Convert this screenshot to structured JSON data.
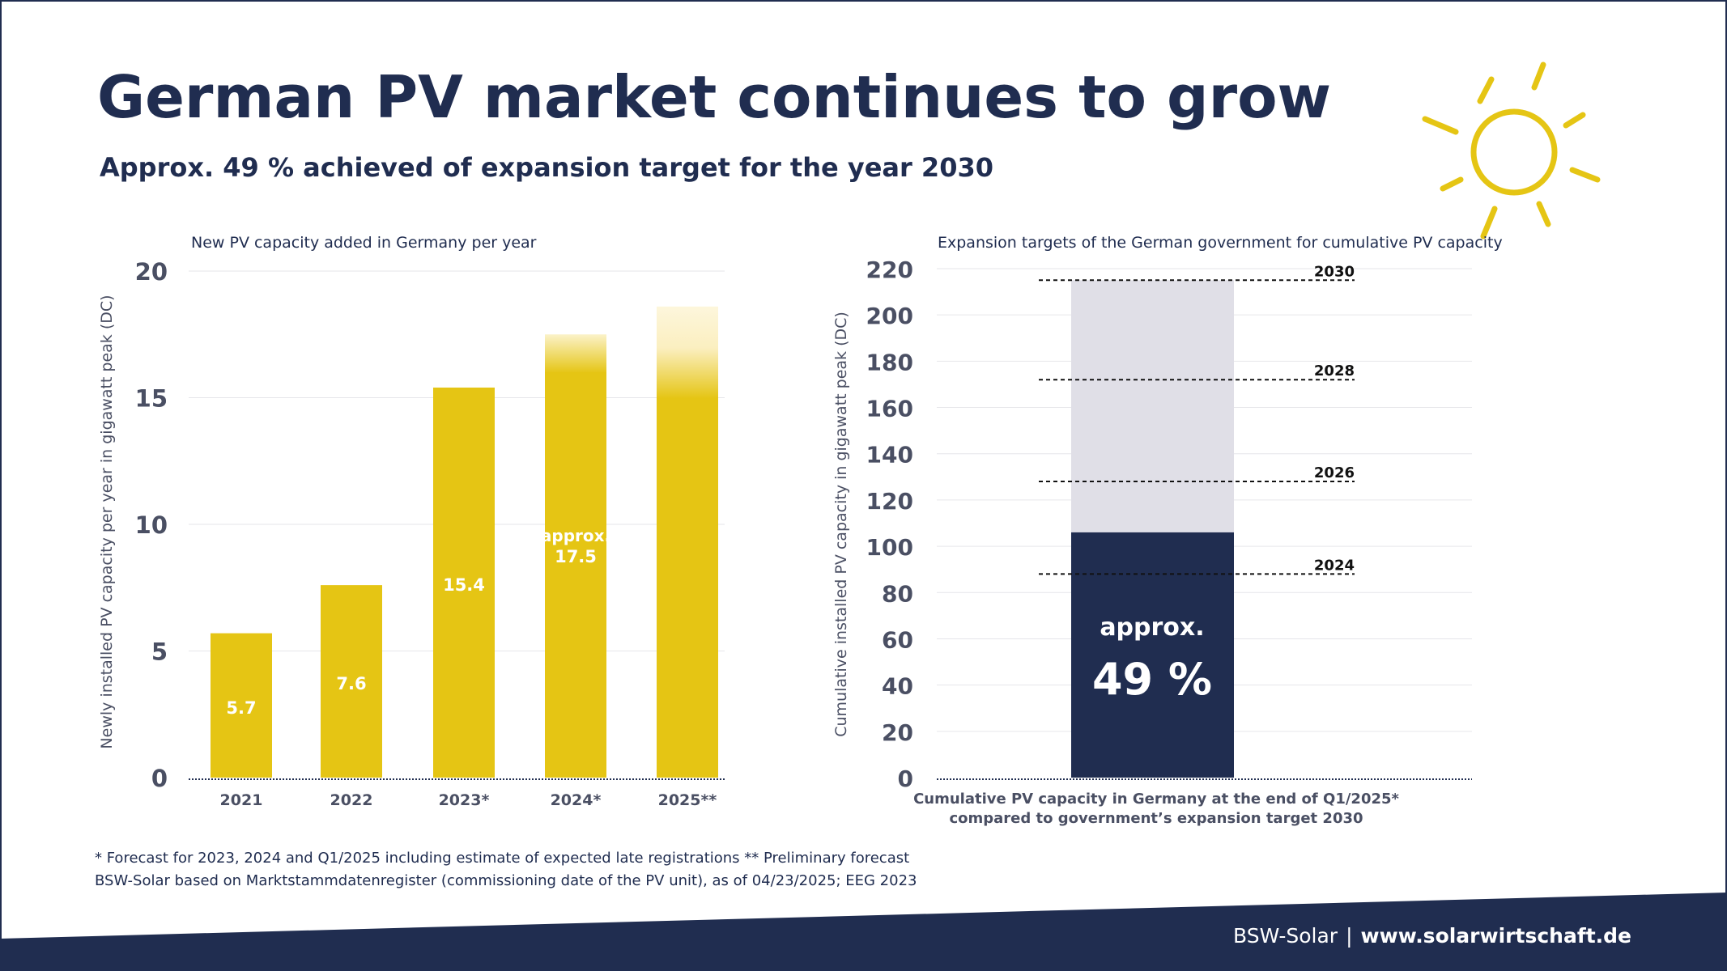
{
  "title": "German PV market continues to grow",
  "subtitle": "Approx. 49 % achieved of expansion target for the year 2030",
  "colors": {
    "navy": "#202d50",
    "yellow": "#e5c514",
    "lightgray": "#e0dfe7",
    "axis_text": "#4a4f63",
    "faded_yellow": "#fbf2c8"
  },
  "chart_data": [
    {
      "type": "bar",
      "title": "New PV capacity added in Germany per year",
      "ylabel": "Newly installed PV capacity per year in gigawatt peak (DC)",
      "categories": [
        "2021",
        "2022",
        "2023*",
        "2024*",
        "2025**"
      ],
      "values": [
        5.7,
        7.6,
        15.4,
        17.5,
        18.6
      ],
      "value_labels": [
        "5.7",
        "7.6",
        "15.4",
        "approx.|17.5",
        ""
      ],
      "faded_top_from": [
        null,
        null,
        null,
        16.0,
        15.0
      ],
      "yticks": [
        0,
        5,
        10,
        15,
        20
      ],
      "ylim": [
        0,
        20
      ],
      "grid": true
    },
    {
      "type": "bar",
      "title": "Expansion targets of the German government for cumulative PV capacity",
      "ylabel": "Cumulative installed PV capacity in gigawatt peak (DC)",
      "xlabel": "Cumulative PV capacity in Germany at the end of Q1/2025* compared to government’s expansion target 2030",
      "achieved": 106,
      "target_total": 215,
      "achieved_label": [
        "approx.",
        "49 %"
      ],
      "targets": [
        {
          "label": "2030",
          "value": 215
        },
        {
          "label": "2028",
          "value": 172
        },
        {
          "label": "2026",
          "value": 128
        },
        {
          "label": "2024",
          "value": 88
        }
      ],
      "yticks": [
        0,
        20,
        40,
        60,
        80,
        100,
        120,
        140,
        160,
        180,
        200,
        220
      ],
      "ylim": [
        0,
        220
      ],
      "grid": true
    }
  ],
  "footnote": [
    "* Forecast for 2023, 2024 and Q1/2025 including estimate of expected late registrations  ** Preliminary forecast",
    "BSW-Solar based on Marktstammdatenregister (commissioning date of the PV unit), as of 04/23/2025; EEG 2023"
  ],
  "footer": {
    "brand": "BSW-Solar",
    "separator": "|",
    "url": "www.solarwirtschaft.de"
  },
  "icons": [
    "sun-icon"
  ]
}
